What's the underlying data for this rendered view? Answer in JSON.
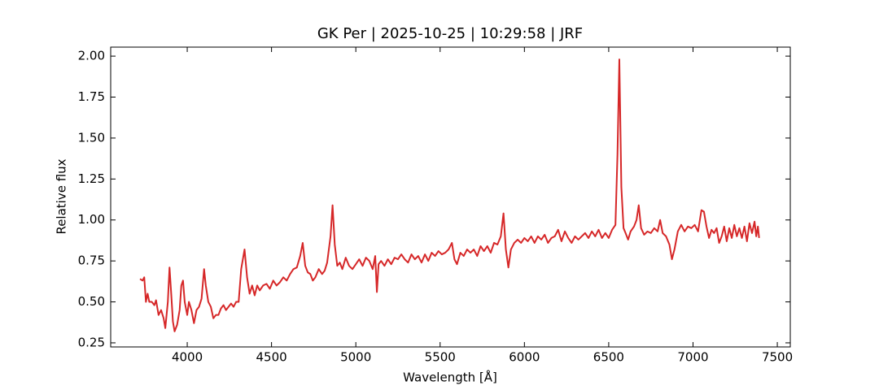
{
  "chart_data": {
    "type": "line",
    "title": "GK Per | 2025-10-25 | 10:29:58 | JRF",
    "xlabel": "Wavelength [Å]",
    "ylabel": "Relative flux",
    "xlim": [
      3546,
      7577
    ],
    "ylim": [
      0.225,
      2.055
    ],
    "xticks": [
      4000,
      4500,
      5000,
      5500,
      6000,
      6500,
      7000,
      7500
    ],
    "yticks": [
      {
        "value": 0.25,
        "label": "0.25"
      },
      {
        "value": 0.5,
        "label": "0.50"
      },
      {
        "value": 0.75,
        "label": "0.75"
      },
      {
        "value": 1.0,
        "label": "1.00"
      },
      {
        "value": 1.25,
        "label": "1.25"
      },
      {
        "value": 1.5,
        "label": "1.50"
      },
      {
        "value": 1.75,
        "label": "1.75"
      },
      {
        "value": 2.0,
        "label": "2.00"
      }
    ],
    "x": [
      3720,
      3735,
      3745,
      3755,
      3765,
      3775,
      3790,
      3805,
      3815,
      3830,
      3845,
      3860,
      3870,
      3885,
      3895,
      3905,
      3915,
      3925,
      3940,
      3955,
      3965,
      3975,
      3985,
      4000,
      4010,
      4025,
      4040,
      4055,
      4070,
      4085,
      4100,
      4110,
      4125,
      4140,
      4155,
      4170,
      4185,
      4200,
      4215,
      4230,
      4245,
      4260,
      4275,
      4290,
      4305,
      4320,
      4340,
      4355,
      4370,
      4385,
      4400,
      4415,
      4430,
      4450,
      4470,
      4490,
      4510,
      4530,
      4550,
      4570,
      4590,
      4610,
      4630,
      4650,
      4670,
      4685,
      4700,
      4715,
      4730,
      4745,
      4760,
      4780,
      4800,
      4815,
      4830,
      4850,
      4862,
      4875,
      4890,
      4905,
      4920,
      4940,
      4960,
      4980,
      5000,
      5020,
      5040,
      5060,
      5080,
      5100,
      5115,
      5125,
      5135,
      5150,
      5170,
      5190,
      5210,
      5230,
      5250,
      5270,
      5290,
      5310,
      5330,
      5350,
      5370,
      5390,
      5410,
      5430,
      5450,
      5470,
      5490,
      5510,
      5530,
      5550,
      5570,
      5585,
      5600,
      5620,
      5640,
      5660,
      5680,
      5700,
      5720,
      5740,
      5760,
      5780,
      5800,
      5820,
      5840,
      5860,
      5876,
      5890,
      5905,
      5920,
      5940,
      5960,
      5980,
      6000,
      6020,
      6040,
      6060,
      6080,
      6100,
      6120,
      6140,
      6160,
      6180,
      6200,
      6220,
      6240,
      6260,
      6280,
      6300,
      6320,
      6340,
      6360,
      6380,
      6400,
      6420,
      6440,
      6460,
      6480,
      6500,
      6520,
      6540,
      6552,
      6563,
      6575,
      6588,
      6600,
      6615,
      6630,
      6650,
      6665,
      6678,
      6692,
      6710,
      6730,
      6750,
      6770,
      6790,
      6805,
      6820,
      6840,
      6860,
      6875,
      6890,
      6910,
      6930,
      6950,
      6970,
      6990,
      7010,
      7030,
      7050,
      7065,
      7080,
      7095,
      7110,
      7125,
      7140,
      7155,
      7170,
      7185,
      7200,
      7215,
      7230,
      7245,
      7260,
      7275,
      7290,
      7305,
      7320,
      7335,
      7350,
      7365,
      7375,
      7385,
      7392
    ],
    "series": [
      {
        "name": "GK Per",
        "color": "#d62728",
        "values": [
          0.64,
          0.63,
          0.65,
          0.5,
          0.55,
          0.5,
          0.5,
          0.48,
          0.51,
          0.42,
          0.45,
          0.4,
          0.34,
          0.5,
          0.71,
          0.55,
          0.38,
          0.32,
          0.36,
          0.45,
          0.6,
          0.63,
          0.5,
          0.42,
          0.5,
          0.45,
          0.37,
          0.45,
          0.47,
          0.52,
          0.7,
          0.6,
          0.5,
          0.47,
          0.4,
          0.42,
          0.42,
          0.46,
          0.48,
          0.45,
          0.47,
          0.49,
          0.47,
          0.5,
          0.5,
          0.7,
          0.82,
          0.65,
          0.55,
          0.6,
          0.54,
          0.6,
          0.57,
          0.6,
          0.61,
          0.58,
          0.63,
          0.6,
          0.62,
          0.65,
          0.63,
          0.67,
          0.7,
          0.71,
          0.78,
          0.86,
          0.72,
          0.68,
          0.67,
          0.63,
          0.65,
          0.7,
          0.67,
          0.69,
          0.74,
          0.9,
          1.09,
          0.85,
          0.72,
          0.74,
          0.7,
          0.77,
          0.72,
          0.7,
          0.73,
          0.76,
          0.72,
          0.77,
          0.75,
          0.7,
          0.78,
          0.56,
          0.73,
          0.75,
          0.72,
          0.76,
          0.73,
          0.77,
          0.76,
          0.79,
          0.76,
          0.74,
          0.79,
          0.76,
          0.78,
          0.74,
          0.79,
          0.75,
          0.8,
          0.78,
          0.81,
          0.79,
          0.8,
          0.82,
          0.86,
          0.76,
          0.73,
          0.8,
          0.78,
          0.82,
          0.8,
          0.82,
          0.78,
          0.84,
          0.81,
          0.84,
          0.8,
          0.86,
          0.85,
          0.9,
          1.04,
          0.82,
          0.71,
          0.82,
          0.86,
          0.88,
          0.86,
          0.89,
          0.87,
          0.9,
          0.86,
          0.9,
          0.88,
          0.91,
          0.86,
          0.89,
          0.9,
          0.94,
          0.87,
          0.93,
          0.89,
          0.86,
          0.9,
          0.88,
          0.9,
          0.92,
          0.89,
          0.93,
          0.9,
          0.94,
          0.89,
          0.92,
          0.89,
          0.94,
          0.97,
          1.4,
          1.98,
          1.2,
          0.95,
          0.92,
          0.88,
          0.93,
          0.96,
          1.0,
          1.09,
          0.95,
          0.91,
          0.93,
          0.92,
          0.95,
          0.93,
          1.0,
          0.92,
          0.9,
          0.85,
          0.76,
          0.82,
          0.93,
          0.97,
          0.93,
          0.96,
          0.95,
          0.97,
          0.93,
          1.06,
          1.05,
          0.96,
          0.89,
          0.94,
          0.92,
          0.95,
          0.86,
          0.9,
          0.96,
          0.87,
          0.95,
          0.89,
          0.97,
          0.9,
          0.95,
          0.89,
          0.96,
          0.87,
          0.98,
          0.92,
          0.99,
          0.9,
          0.96,
          0.89
        ]
      }
    ]
  }
}
